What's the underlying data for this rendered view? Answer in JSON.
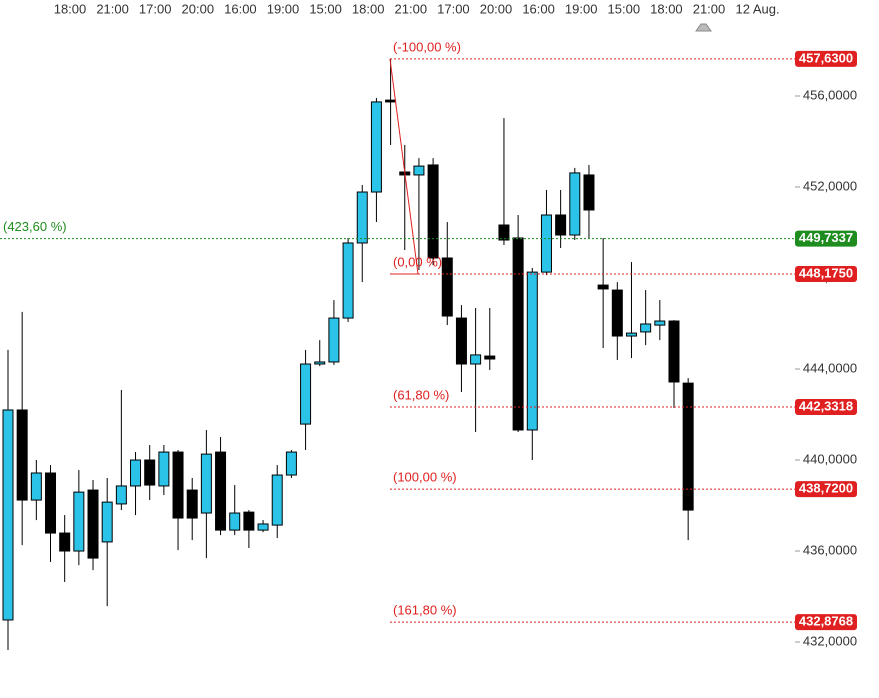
{
  "chart_data": {
    "type": "candlestick",
    "x_labels": [
      "18:00",
      "21:00",
      "17:00",
      "20:00",
      "16:00",
      "19:00",
      "15:00",
      "18:00",
      "21:00",
      "17:00",
      "20:00",
      "16:00",
      "19:00",
      "15:00",
      "18:00",
      "21:00",
      "12 Aug."
    ],
    "open": [
      432.97,
      442.2,
      438.24,
      439.43,
      436.79,
      436.0,
      438.68,
      436.4,
      438.07,
      438.86,
      440.0,
      438.86,
      440.35,
      438.68,
      437.67,
      440.35,
      436.92,
      437.71,
      436.92,
      437.14,
      439.34,
      441.58,
      444.22,
      444.31,
      446.24,
      449.54,
      451.78,
      455.82,
      452.66,
      452.53,
      452.97,
      448.88,
      446.24,
      444.22,
      444.57,
      450.33,
      449.76,
      441.32,
      448.26,
      450.77,
      449.89,
      452.53,
      447.69,
      447.47,
      445.45,
      445.63,
      445.93,
      446.11,
      443.38
    ],
    "high": [
      444.84,
      446.51,
      440.0,
      439.78,
      437.58,
      439.56,
      439.12,
      439.21,
      443.08,
      440.35,
      440.66,
      440.66,
      440.44,
      439.21,
      441.32,
      441.01,
      438.9,
      437.8,
      437.36,
      439.78,
      440.44,
      444.84,
      445.27,
      447.03,
      449.76,
      452.09,
      455.91,
      457.63,
      453.85,
      453.27,
      453.27,
      450.46,
      446.81,
      446.68,
      446.68,
      455.03,
      450.77,
      448.44,
      451.87,
      451.87,
      452.84,
      452.97,
      449.76,
      447.82,
      448.7,
      447.47,
      447.03,
      446.15,
      443.6
    ],
    "low": [
      431.65,
      436.26,
      437.36,
      435.52,
      434.64,
      435.38,
      435.16,
      433.58,
      437.8,
      437.58,
      438.24,
      438.46,
      436.04,
      436.48,
      435.69,
      436.7,
      436.7,
      436.13,
      436.83,
      436.57,
      439.21,
      440.44,
      444.13,
      444.18,
      446.07,
      447.82,
      450.46,
      453.85,
      449.23,
      448.35,
      448.57,
      445.93,
      442.99,
      441.23,
      443.96,
      449.45,
      441.23,
      440.0,
      448.13,
      449.32,
      449.67,
      449.76,
      444.92,
      444.4,
      444.48,
      445.05,
      445.27,
      442.29,
      436.48
    ],
    "close": [
      442.2,
      438.24,
      439.43,
      436.79,
      436.0,
      438.59,
      435.69,
      438.15,
      438.86,
      440.0,
      438.9,
      440.35,
      437.45,
      437.45,
      440.26,
      436.92,
      437.67,
      436.92,
      437.19,
      439.34,
      440.35,
      444.22,
      444.31,
      446.24,
      449.54,
      451.78,
      455.74,
      455.74,
      452.53,
      452.92,
      448.88,
      446.33,
      444.22,
      444.62,
      444.44,
      449.67,
      441.32,
      448.26,
      450.77,
      449.89,
      452.62,
      450.99,
      447.52,
      445.45,
      445.58,
      445.98,
      446.11,
      443.43,
      437.8
    ],
    "up_color": "#2bc4e8",
    "down_color": "#000000",
    "ylim": [
      429.54,
      460.22
    ],
    "yticks": [
      {
        "value": 432,
        "label": "432,0000"
      },
      {
        "value": 436,
        "label": "436,0000"
      },
      {
        "value": 440,
        "label": "440,0000"
      },
      {
        "value": 444,
        "label": "444,0000"
      },
      {
        "value": 448,
        "label": "448,0000"
      },
      {
        "value": 452,
        "label": "452,0000"
      },
      {
        "value": 456,
        "label": "456,0000"
      }
    ],
    "levels": [
      {
        "name": "(-100,00 %)",
        "value": 457.63,
        "value_label": "457,6300",
        "color": "#e02020"
      },
      {
        "name": "(0,00 %)",
        "value": 448.175,
        "value_label": "448,1750",
        "color": "#e02020"
      },
      {
        "name": "(61,80 %)",
        "value": 442.3318,
        "value_label": "442,3318",
        "color": "#e02020"
      },
      {
        "name": "(100,00 %)",
        "value": 438.72,
        "value_label": "438,7200",
        "color": "#e02020"
      },
      {
        "name": "(161,80 %)",
        "value": 432.8768,
        "value_label": "432,8768",
        "color": "#e02020"
      },
      {
        "name": "(423,60 %)",
        "value": 449.7337,
        "value_label": "449,7337",
        "color": "#1e8c1e"
      }
    ]
  }
}
